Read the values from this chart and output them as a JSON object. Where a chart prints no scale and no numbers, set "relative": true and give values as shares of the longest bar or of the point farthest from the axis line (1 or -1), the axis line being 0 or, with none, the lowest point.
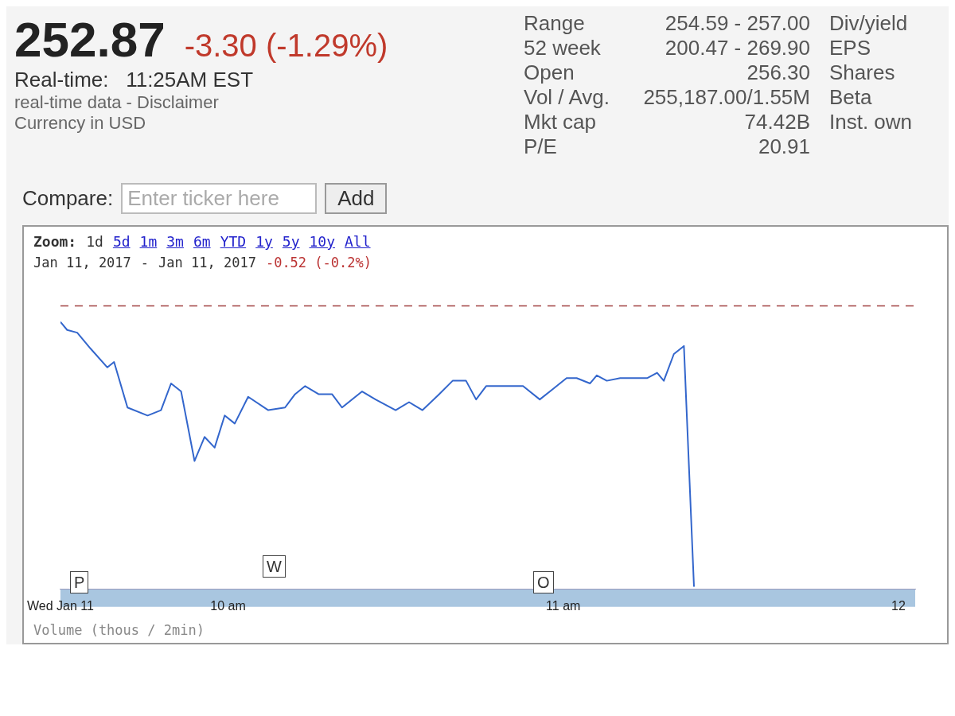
{
  "chart_data": {
    "type": "line",
    "relative": true,
    "x": [
      9.5,
      9.52,
      9.55,
      9.59,
      9.64,
      9.66,
      9.7,
      9.76,
      9.8,
      9.83,
      9.86,
      9.9,
      9.93,
      9.96,
      9.99,
      10.02,
      10.06,
      10.12,
      10.17,
      10.2,
      10.23,
      10.27,
      10.31,
      10.34,
      10.4,
      10.44,
      10.5,
      10.54,
      10.58,
      10.63,
      10.67,
      10.71,
      10.74,
      10.77,
      10.85,
      10.88,
      10.93,
      10.97,
      11.01,
      11.04,
      11.08,
      11.1,
      11.13,
      11.17,
      11.25,
      11.28,
      11.3,
      11.33,
      11.36,
      11.39
    ],
    "series": [
      {
        "color": "#3366cc",
        "values": [
          1.0,
          0.97,
          0.96,
          0.9,
          0.83,
          0.85,
          0.68,
          0.65,
          0.67,
          0.77,
          0.74,
          0.48,
          0.57,
          0.53,
          0.65,
          0.62,
          0.72,
          0.67,
          0.68,
          0.73,
          0.76,
          0.73,
          0.73,
          0.68,
          0.74,
          0.71,
          0.67,
          0.7,
          0.67,
          0.73,
          0.78,
          0.78,
          0.71,
          0.76,
          0.76,
          0.76,
          0.71,
          0.75,
          0.79,
          0.79,
          0.77,
          0.8,
          0.78,
          0.79,
          0.79,
          0.81,
          0.78,
          0.88,
          0.91,
          0.01
        ]
      }
    ],
    "xlim": [
      9.5,
      12.05
    ],
    "xticks": [
      {
        "value": 9.5,
        "label": "Wed Jan 11"
      },
      {
        "value": 10,
        "label": "10 am"
      },
      {
        "value": 11,
        "label": "11 am"
      },
      {
        "value": 12,
        "label": "12"
      }
    ],
    "ref_lines": [
      {
        "axis": "y",
        "value": 1.06,
        "label": null,
        "color": "#a04040",
        "line_style": "dashed"
      }
    ],
    "marker": "none",
    "annotations": [
      "252.87",
      "-3.30 (-1.29%)",
      "Real-time:   11:25AM EST",
      "real-time data - Disclaimer",
      "Currency in USD",
      "Range",
      "254.59 - 257.00",
      "52 week",
      "200.47 - 269.90",
      "Open",
      "256.30",
      "Vol / Avg.",
      "255,187.00/1.55M",
      "Mkt cap",
      "74.42B",
      "P/E",
      "20.91",
      "Div/yield",
      "EPS",
      "Shares",
      "Beta",
      "Inst. own",
      "Compare:",
      "Enter ticker here",
      "Add",
      "Zoom:",
      "1d",
      "5d",
      "1m",
      "3m",
      "6m",
      "YTD",
      "1y",
      "5y",
      "10y",
      "All",
      "Jan 11, 2017",
      "-",
      "Jan 11, 2017",
      "-0.52 (-0.2%)",
      "Volume (thous / 2min)",
      "P",
      "W",
      "O"
    ]
  }
}
